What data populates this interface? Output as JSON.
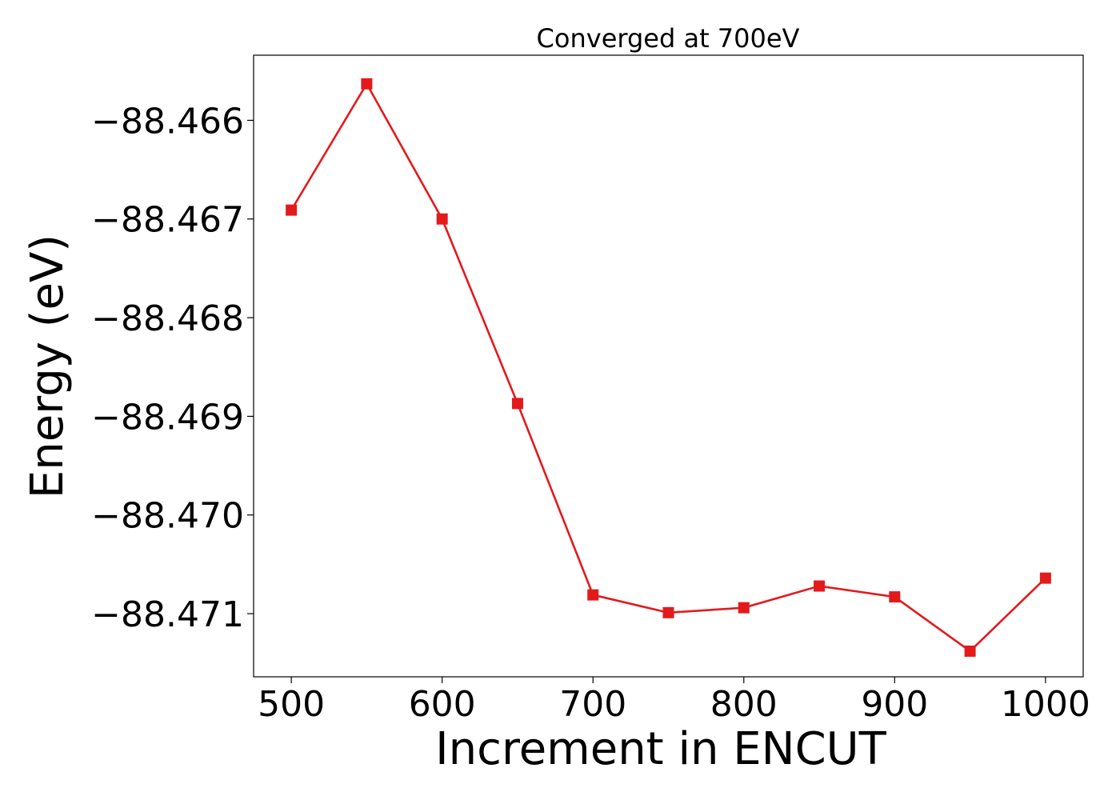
{
  "chart_data": {
    "type": "line",
    "title": "Converged at 700eV",
    "xlabel": "Increment in ENCUT",
    "ylabel": "Energy (eV)",
    "x": [
      500,
      550,
      600,
      650,
      700,
      750,
      800,
      850,
      900,
      950,
      1000
    ],
    "series": [
      {
        "values": [
          -88.46691,
          -88.46563,
          -88.467,
          -88.46887,
          -88.47081,
          -88.47099,
          -88.47094,
          -88.47072,
          -88.47083,
          -88.47138,
          -88.47064
        ],
        "color": "#e31a1c",
        "marker": "square"
      }
    ],
    "xlim": [
      475,
      1025
    ],
    "ylim": [
      -88.47164,
      -88.46534
    ],
    "xticks": [
      500,
      600,
      700,
      800,
      900,
      1000
    ],
    "xtick_labels": [
      "500",
      "600",
      "700",
      "800",
      "900",
      "1000"
    ],
    "yticks": [
      -88.466,
      -88.467,
      -88.468,
      -88.469,
      -88.47,
      -88.471
    ],
    "ytick_labels": [
      "−88.466",
      "−88.467",
      "−88.468",
      "−88.469",
      "−88.470",
      "−88.471"
    ],
    "grid": false,
    "legend": false
  }
}
